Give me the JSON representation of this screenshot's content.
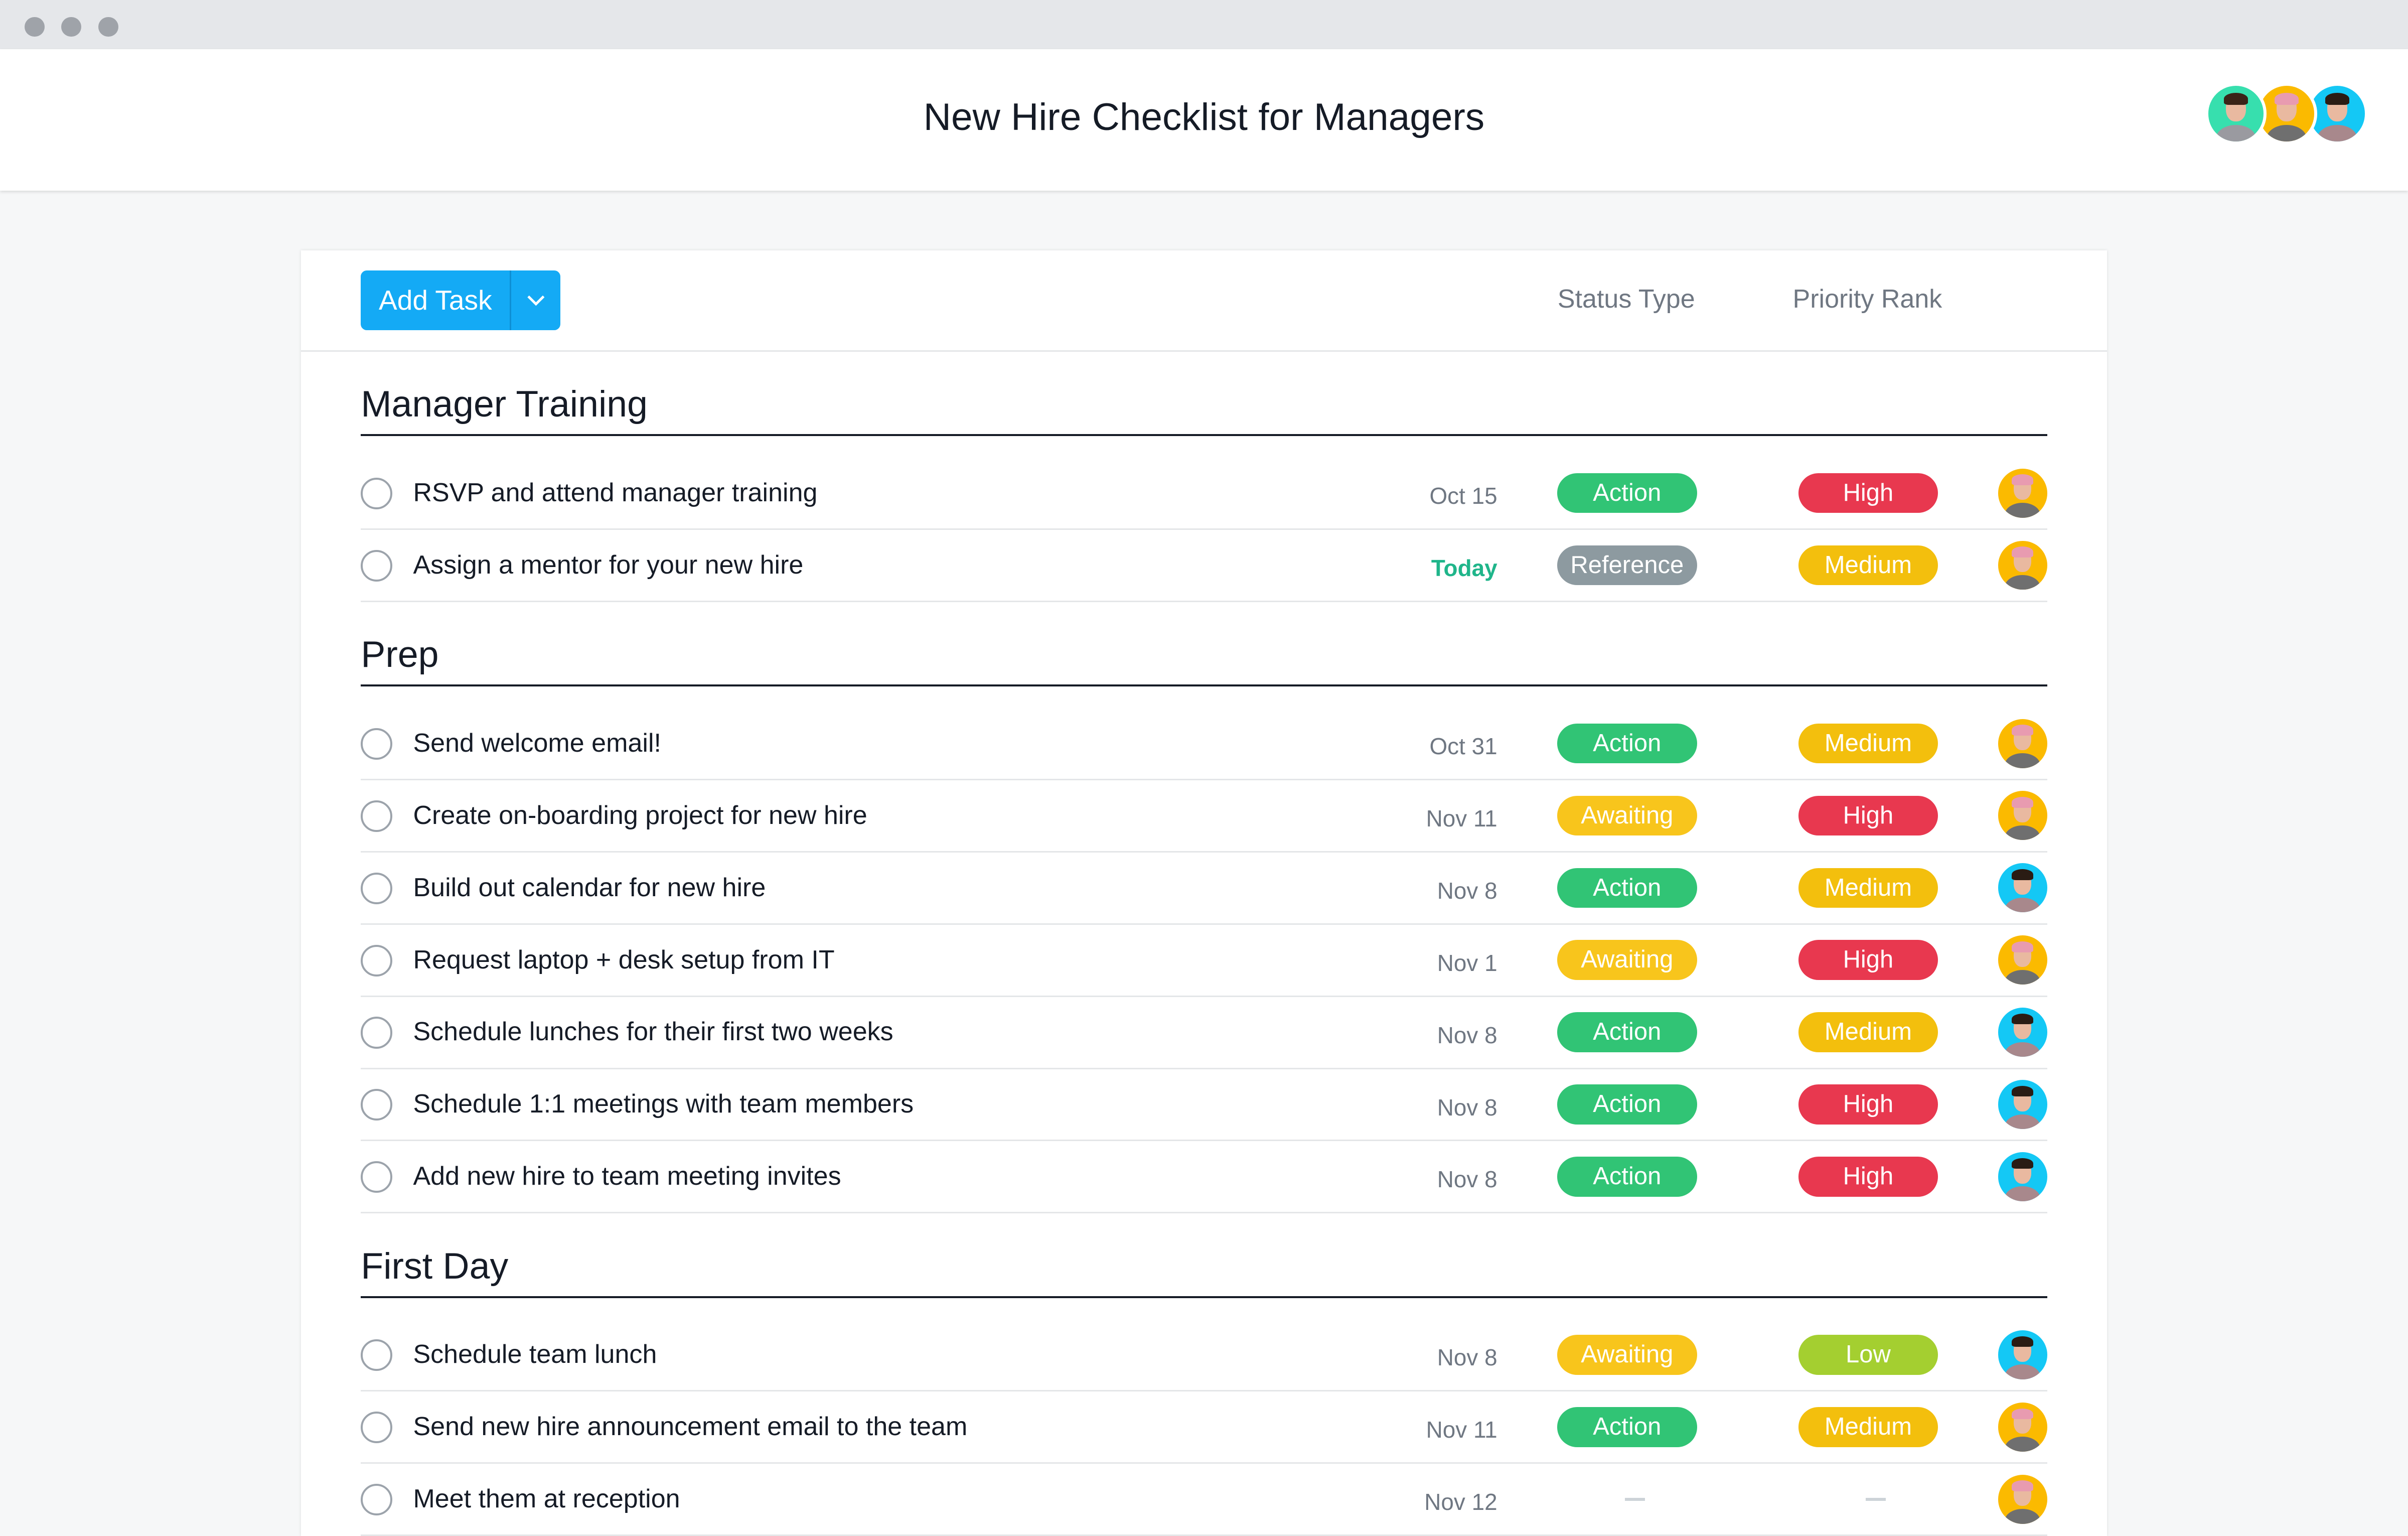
{
  "window": {
    "title": "New Hire Checklist for Managers"
  },
  "header": {
    "members": [
      {
        "name": "member-avatar-1",
        "bg": "#37dfae",
        "hair": "#3a2418",
        "shirt": "#9a9aa0"
      },
      {
        "name": "member-avatar-2",
        "bg": "#fbba00",
        "hair": "#e89bb0",
        "shirt": "#6f6f6f"
      },
      {
        "name": "member-avatar-3",
        "bg": "#14c8f5",
        "hair": "#2a1c14",
        "shirt": "#a8888c"
      }
    ]
  },
  "toolbar": {
    "add_task_label": "Add Task",
    "columns": [
      "Status Type",
      "Priority Rank"
    ]
  },
  "colors": {
    "Action": "#31c475",
    "Reference": "#8d9aa0",
    "Awaiting": "#f8c51c",
    "High": "#e8384f",
    "Medium": "#f3bf0d",
    "Low": "#a4cf30",
    "accent": "#14aaf5"
  },
  "sections": [
    {
      "title": "Manager Training",
      "tasks": [
        {
          "name": "RSVP and attend manager training",
          "date": "Oct 15",
          "status": "Action",
          "priority": "High",
          "assignee": "yellow"
        },
        {
          "name": "Assign a mentor for your new hire",
          "date": "Today",
          "status": "Reference",
          "priority": "Medium",
          "assignee": "yellow"
        }
      ]
    },
    {
      "title": "Prep",
      "tasks": [
        {
          "name": "Send welcome email!",
          "date": "Oct 31",
          "status": "Action",
          "priority": "Medium",
          "assignee": "yellow"
        },
        {
          "name": "Create on-boarding project for new hire",
          "date": "Nov 11",
          "status": "Awaiting",
          "priority": "High",
          "assignee": "yellow"
        },
        {
          "name": "Build out calendar for new hire",
          "date": "Nov 8",
          "status": "Action",
          "priority": "Medium",
          "assignee": "blue"
        },
        {
          "name": "Request laptop + desk setup from IT",
          "date": "Nov 1",
          "status": "Awaiting",
          "priority": "High",
          "assignee": "yellow"
        },
        {
          "name": "Schedule lunches for their first two weeks",
          "date": "Nov 8",
          "status": "Action",
          "priority": "Medium",
          "assignee": "blue"
        },
        {
          "name": "Schedule 1:1 meetings with team members",
          "date": "Nov 8",
          "status": "Action",
          "priority": "High",
          "assignee": "blue"
        },
        {
          "name": "Add new hire to team meeting invites",
          "date": "Nov 8",
          "status": "Action",
          "priority": "High",
          "assignee": "blue"
        }
      ]
    },
    {
      "title": "First Day",
      "tasks": [
        {
          "name": "Schedule team lunch",
          "date": "Nov 8",
          "status": "Awaiting",
          "priority": "Low",
          "assignee": "blue"
        },
        {
          "name": "Send new hire announcement email to the team",
          "date": "Nov 11",
          "status": "Action",
          "priority": "Medium",
          "assignee": "yellow"
        },
        {
          "name": "Meet them at reception",
          "date": "Nov 12",
          "status": "",
          "priority": "",
          "assignee": "yellow"
        }
      ]
    }
  ]
}
